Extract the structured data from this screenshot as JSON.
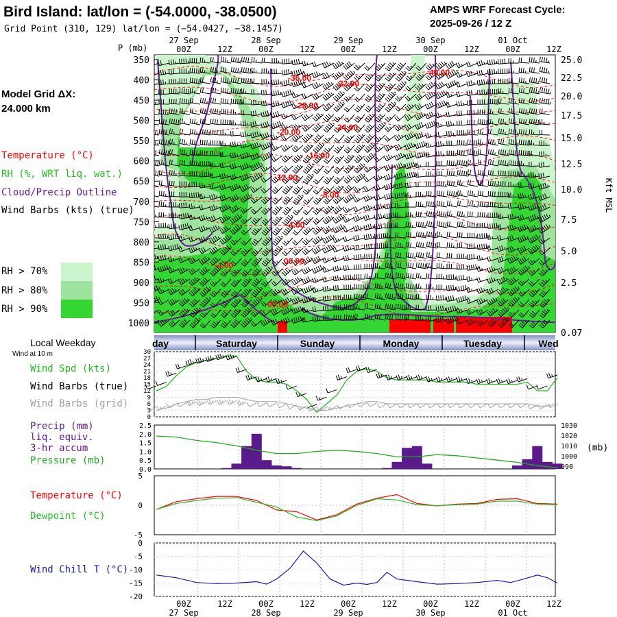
{
  "header": {
    "station_title": "Bird Island:  lat/lon = (-54.0000, -38.0500)",
    "grid_point": "Grid Point (310, 129) lat/lon = (−54.0427, −38.1457)",
    "product_line1": "AMPS WRF Forecast Cycle:",
    "product_line2": "2025-09-26 / 12  Z"
  },
  "side_legend": {
    "model_grid_line1": "Model Grid ΔX:",
    "model_grid_line2": " 24.000 km",
    "temperature": "Temperature (°C)",
    "rh": "RH (%, WRT liq. wat.)",
    "cloud": "Cloud/Precip Outline",
    "barbs": "Wind Barbs (kts) (true)",
    "rh_keys": [
      "RH > 70%",
      "RH > 80%",
      "RH > 90%"
    ]
  },
  "time_axis": {
    "top_dates": [
      "27 Sep",
      "28 Sep",
      "29 Sep",
      "30 Sep",
      "01 Oct"
    ],
    "hour_labels": [
      "00Z",
      "12Z",
      "00Z",
      "12Z",
      "00Z",
      "12Z",
      "00Z",
      "12Z",
      "00Z",
      "12Z"
    ],
    "p_unit": "P (mb)",
    "right_axis_label": "Kft MSL",
    "weekday_label": "Local Weekday",
    "weekdays": [
      "day",
      "Saturday",
      "Sunday",
      "Monday",
      "Tuesday",
      "Wed"
    ],
    "bottom_dates": [
      "27 Sep",
      "28 Sep",
      "29 Sep",
      "30 Sep",
      "01 Oct"
    ]
  },
  "panel_labels": {
    "wind_note": "Wind at 10 m",
    "wind_spd": "Wind Spd (kts)",
    "barbs_true": "Wind Barbs (true)",
    "barbs_grid": "Wind Barbs (grid)",
    "precip1": "Precip (mm)",
    "precip2": "liq. equiv.",
    "precip3": "3-hr accum",
    "pressure": "Pressure (mb)",
    "pressure_unit": "(mb)",
    "temperature": "Temperature (°C)",
    "dewpoint": "Dewpoint (°C)",
    "windchill": "Wind Chill T (°C)"
  },
  "colors": {
    "temperature": "#ff0000",
    "rh": "#33cc33",
    "cloud": "#6a1b9a",
    "barbs": "#000000",
    "barbs_grid": "#a0a0a0",
    "wind_spd": "#22bb22",
    "precip": "#5b1a8a",
    "pressure": "#22aa22",
    "dewpoint": "#22bb22",
    "windchill": "#1a1aaa",
    "rh70": "#cdf5cd",
    "rh80": "#9ee49e",
    "rh90": "#33d633"
  },
  "chart_data": [
    {
      "type": "heatmap",
      "name": "time-height",
      "y_axis": {
        "ticks": [
          350,
          400,
          450,
          500,
          550,
          600,
          650,
          700,
          750,
          800,
          850,
          900,
          950,
          1000
        ],
        "unit": "P (mb)"
      },
      "right_axis": {
        "ticks": [
          "25.0",
          "22.5",
          "20.0",
          "17.5",
          "15.0",
          "12.5",
          "10.0",
          "7.5",
          "5.0",
          "2.5",
          "0.07"
        ],
        "label": "Kft MSL"
      },
      "x_range_hours": [
        0,
        120
      ],
      "temp_contour_labels": [
        "-36.00",
        "-32.00",
        "-40.00",
        "-28.00",
        "-24.00",
        "-20.00",
        "-16.00",
        "-12.00",
        "-8.00",
        "-4.00",
        "-4.00",
        "00.00",
        "00.00"
      ]
    },
    {
      "type": "line",
      "name": "wind-speed",
      "ylim": [
        0,
        30
      ],
      "yticks": [
        "30",
        "27",
        "24",
        "21",
        "18",
        "15",
        "12",
        "9",
        "6",
        "3",
        "0"
      ],
      "x_hours": [
        0,
        3,
        6,
        9,
        12,
        15,
        18,
        21,
        24,
        27,
        30,
        33,
        36,
        39,
        42,
        45,
        48,
        51,
        54,
        57,
        60,
        63,
        66,
        69,
        72,
        75,
        78,
        81,
        84,
        87,
        90,
        93,
        96,
        99,
        102,
        105,
        108,
        111,
        114,
        117,
        120
      ],
      "series": [
        {
          "name": "Wind Spd (kts)",
          "values": [
            12,
            14,
            19,
            23,
            25,
            26,
            27,
            28,
            28,
            21,
            17,
            16,
            16,
            15,
            12,
            8,
            2,
            6,
            10,
            17,
            21,
            22,
            21,
            18,
            17,
            17,
            17,
            17,
            16,
            16,
            16,
            16,
            15,
            15,
            15,
            15,
            15,
            16,
            12,
            12,
            18
          ]
        },
        {
          "name": "Wind Barbs (grid)",
          "values": [
            3,
            4,
            6,
            7,
            8,
            8,
            9,
            9,
            9,
            8,
            7,
            7,
            7,
            6,
            5,
            4,
            3,
            3,
            4,
            5,
            6,
            7,
            7,
            6,
            6,
            6,
            6,
            6,
            6,
            6,
            6,
            6,
            6,
            6,
            6,
            6,
            6,
            6,
            5,
            5,
            6
          ]
        }
      ]
    },
    {
      "type": "bar",
      "name": "precipitation",
      "ylim": [
        0,
        2.5
      ],
      "yticks": [
        "2.5",
        "2.0",
        "1.5",
        "1.0",
        "0.5",
        "0.0"
      ],
      "right_ticks": [
        "1030",
        "1020",
        "1010",
        "1000",
        "990"
      ],
      "x_hours": [
        21,
        24,
        27,
        30,
        33,
        36,
        39,
        42,
        69,
        72,
        75,
        78,
        81,
        108,
        111,
        114,
        117,
        120
      ],
      "values": [
        0.05,
        0.3,
        1.3,
        2.0,
        0.5,
        0.2,
        0.15,
        0.05,
        0.05,
        0.4,
        1.2,
        1.3,
        0.3,
        0.2,
        0.55,
        1.3,
        0.4,
        0.3
      ],
      "pressure": {
        "x_hours": [
          0,
          6,
          12,
          18,
          24,
          30,
          36,
          42,
          48,
          54,
          60,
          66,
          72,
          78,
          84,
          90,
          96,
          102,
          108,
          114,
          120
        ],
        "values": [
          1020,
          1019,
          1016,
          1014,
          1011,
          1007,
          1004,
          1004,
          1006,
          1007,
          1006,
          1004,
          1001,
          1001,
          1003,
          1002,
          1000,
          998,
          996,
          993,
          991
        ]
      }
    },
    {
      "type": "line",
      "name": "temperature-dewpoint",
      "ylim": [
        -5,
        5
      ],
      "yticks": [
        "5",
        "0",
        "-5"
      ],
      "x_hours": [
        0,
        6,
        12,
        18,
        24,
        30,
        36,
        42,
        48,
        54,
        60,
        66,
        72,
        78,
        84,
        90,
        96,
        102,
        108,
        114,
        120
      ],
      "series": [
        {
          "name": "Temperature (°C)",
          "values": [
            -0.7,
            0.6,
            1.1,
            1.5,
            1.5,
            0.8,
            -0.8,
            -1.1,
            -2.5,
            -1.6,
            0.2,
            1.2,
            1.8,
            0.3,
            -0.1,
            0.2,
            0.3,
            1.0,
            1.1,
            0.3,
            0.2
          ]
        },
        {
          "name": "Dewpoint (°C)",
          "values": [
            -0.7,
            0.3,
            0.8,
            1.2,
            1.3,
            0.5,
            -0.3,
            -2.0,
            -2.6,
            -1.8,
            0.0,
            1.1,
            0.9,
            0.1,
            -0.1,
            0.1,
            0.2,
            0.7,
            0.7,
            0.2,
            0.1
          ]
        }
      ]
    },
    {
      "type": "line",
      "name": "wind-chill",
      "ylim": [
        -20,
        0
      ],
      "yticks": [
        "0",
        "-5",
        "-10",
        "-15",
        "-20"
      ],
      "x_hours": [
        0,
        6,
        12,
        18,
        24,
        30,
        33,
        36,
        40,
        44,
        48,
        52,
        56,
        60,
        63,
        66,
        69,
        72,
        78,
        84,
        90,
        96,
        102,
        106,
        110,
        114,
        117,
        120
      ],
      "series": [
        {
          "name": "Wind Chill T (°C)",
          "values": [
            -12,
            -13,
            -14.8,
            -15.2,
            -15.0,
            -14.5,
            -15.4,
            -13.5,
            -9.5,
            -3.0,
            -7.5,
            -13.5,
            -15.8,
            -15.0,
            -15.5,
            -14.8,
            -11.0,
            -13.5,
            -14.5,
            -15.4,
            -15.2,
            -14.8,
            -14.0,
            -14.8,
            -13.5,
            -12.0,
            -13.0,
            -15.0
          ]
        }
      ]
    }
  ]
}
